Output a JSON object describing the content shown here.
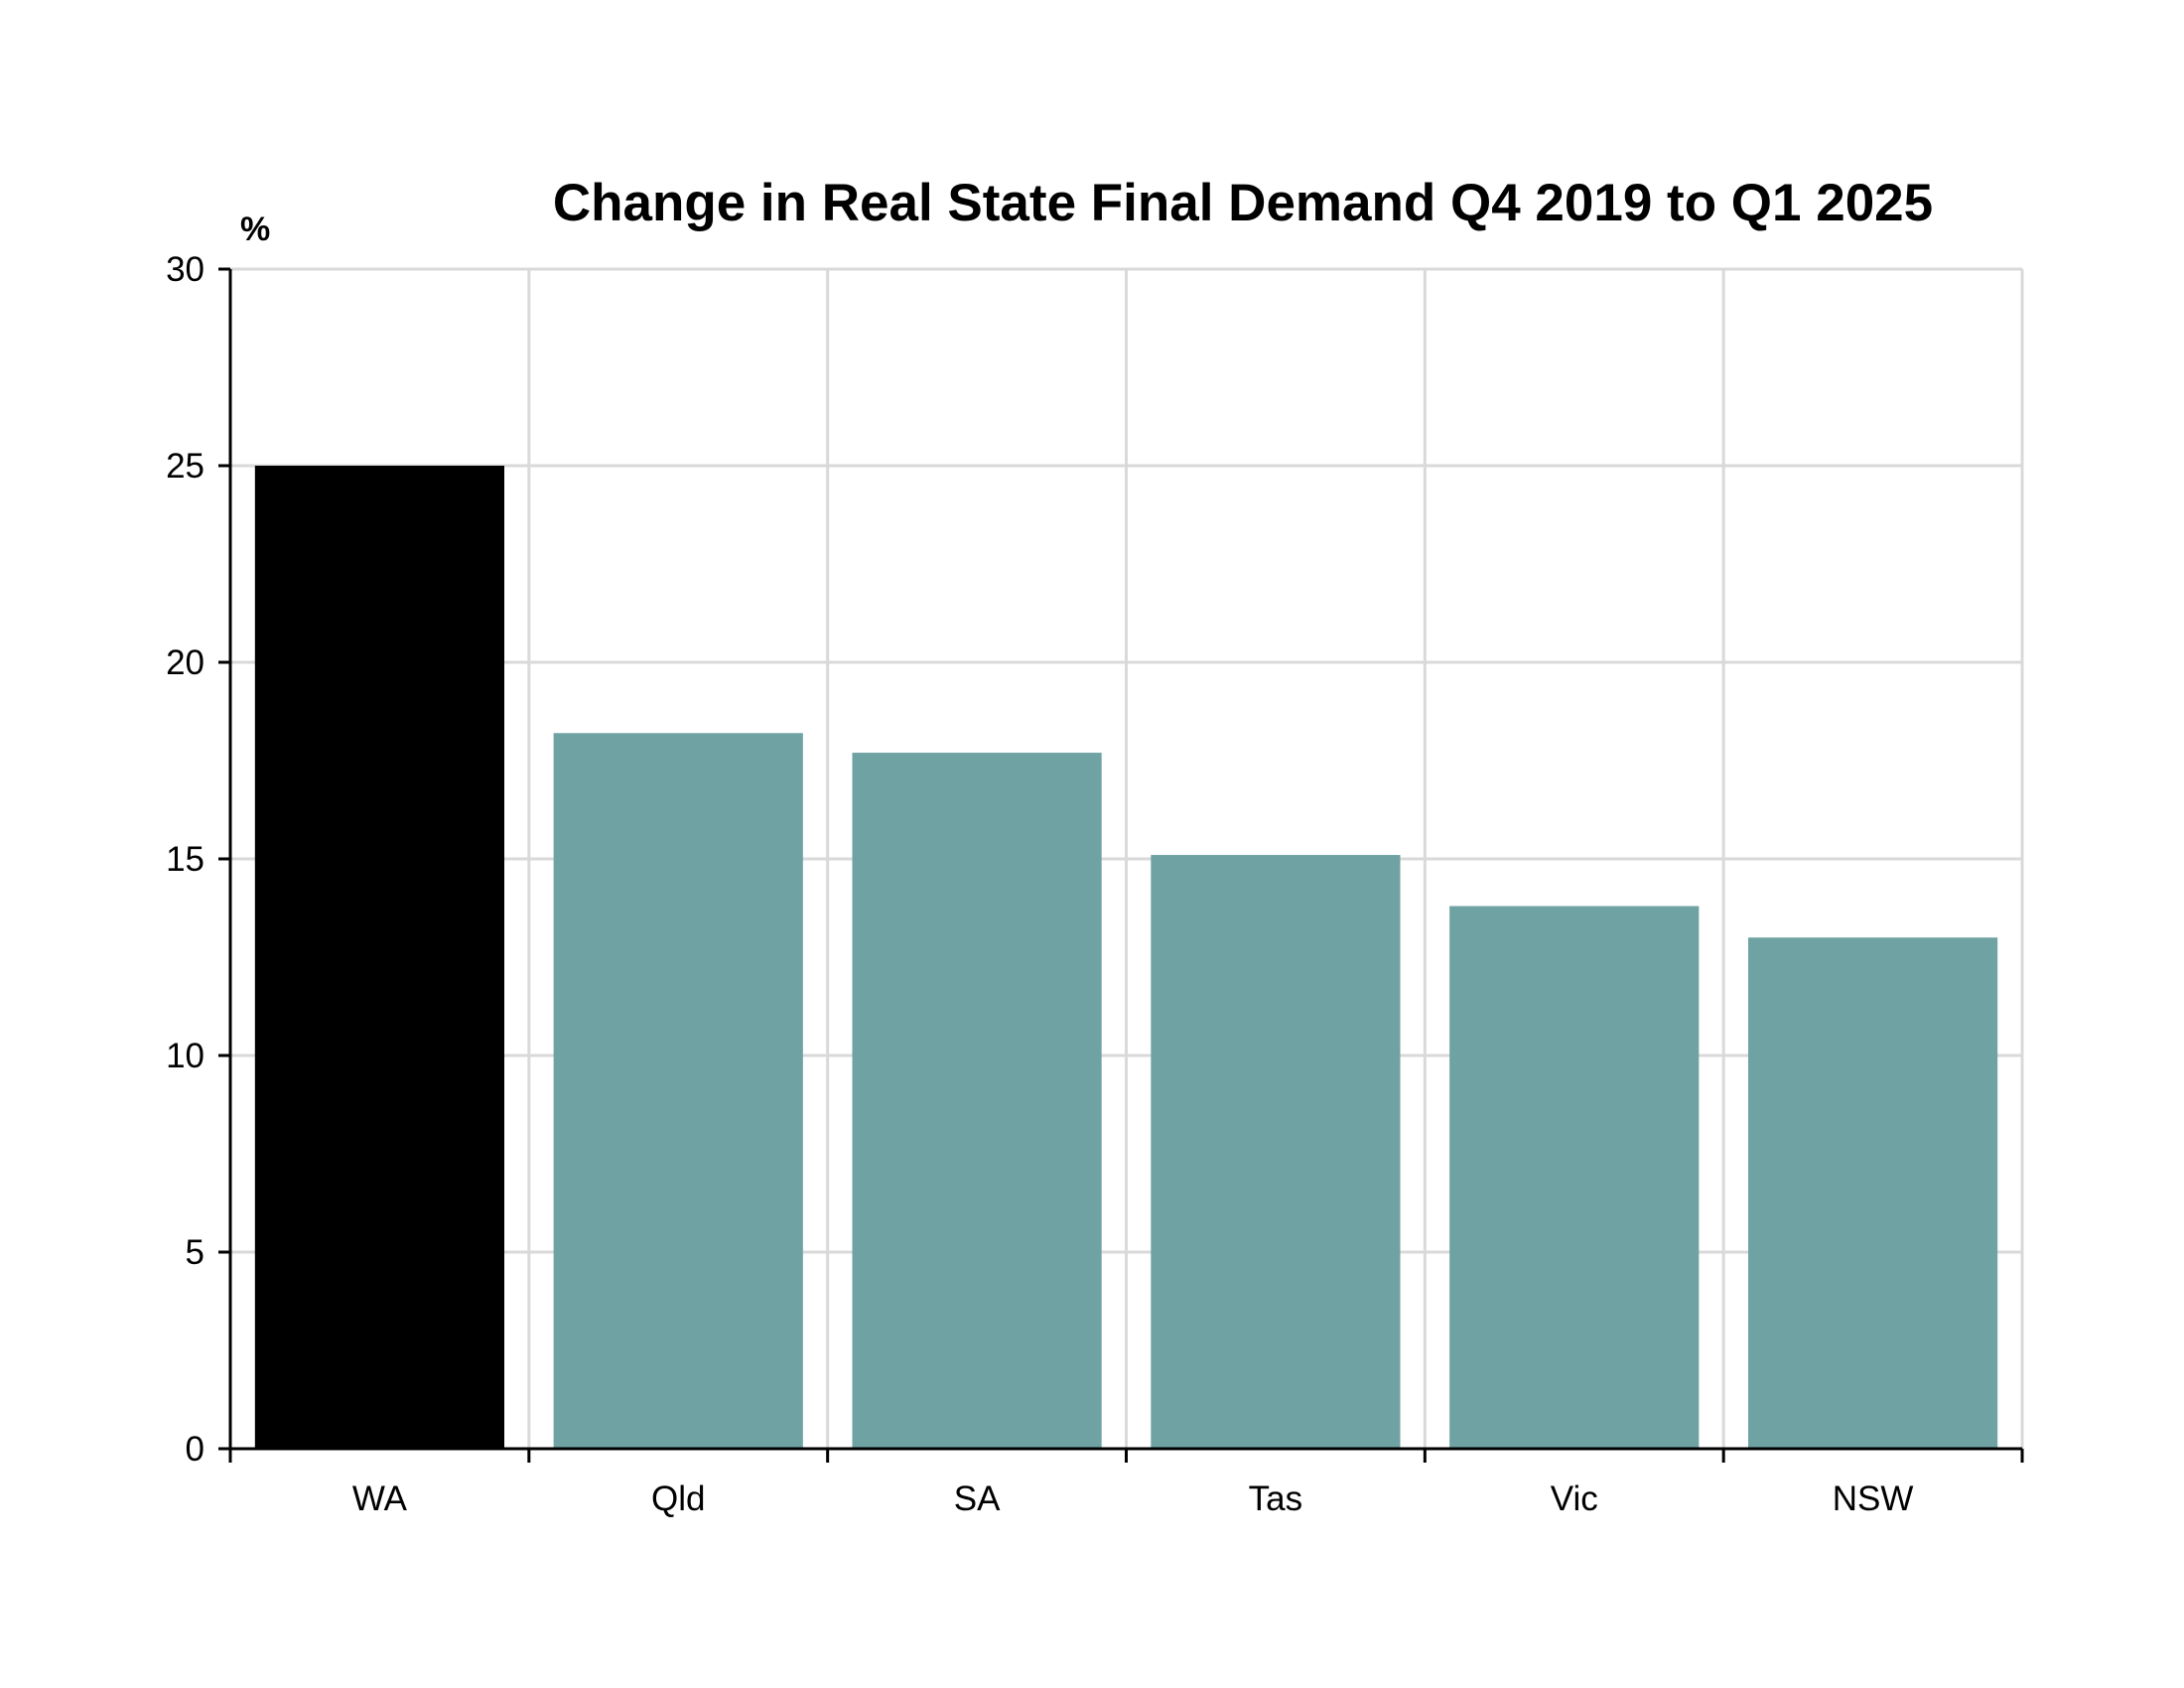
{
  "chart_data": {
    "type": "bar",
    "title": "Change in Real State Final Demand Q4 2019 to Q1 2025",
    "ylabel": "%",
    "xlabel": "",
    "categories": [
      "WA",
      "Qld",
      "SA",
      "Tas",
      "Vic",
      "NSW"
    ],
    "values": [
      25.0,
      18.2,
      17.7,
      15.1,
      13.8,
      13.0
    ],
    "ylim": [
      0,
      30
    ],
    "yticks": [
      "0",
      "5",
      "10",
      "15",
      "20",
      "25",
      "30"
    ],
    "grid": true,
    "legend": "none",
    "colors": {
      "highlight": "#000000",
      "bar": "#6fa3a3",
      "grid": "#d9d9d9",
      "axis": "#000000"
    },
    "highlight_category": "WA"
  }
}
